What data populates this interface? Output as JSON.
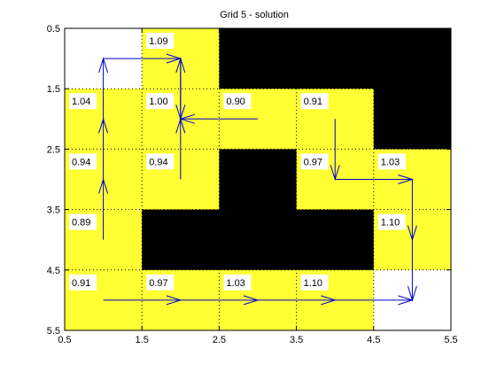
{
  "chart_data": {
    "type": "heatmap",
    "title": "Grid 5 - solution",
    "xlabel": "",
    "ylabel": "",
    "xlim": [
      0.5,
      5.5
    ],
    "ylim": [
      0.5,
      5.5
    ],
    "y_axis_reversed": true,
    "x_ticks": [
      "0.5",
      "1.5",
      "2.5",
      "3.5",
      "4.5",
      "5.5"
    ],
    "y_ticks": [
      "0.5",
      "1.5",
      "2.5",
      "3.5",
      "4.5",
      "5.5"
    ],
    "grid": "dotted",
    "colors": {
      "free": "#ffff33",
      "wall": "#000000",
      "terminal": "#ffffff",
      "arrow": "#0000cc",
      "label_bg": "#ffffff"
    },
    "cell_types": [
      [
        "terminal",
        "free",
        "wall",
        "wall",
        "wall"
      ],
      [
        "free",
        "free",
        "free",
        "free",
        "wall"
      ],
      [
        "free",
        "free",
        "wall",
        "free",
        "free"
      ],
      [
        "free",
        "wall",
        "wall",
        "wall",
        "free"
      ],
      [
        "free",
        "free",
        "free",
        "free",
        "terminal"
      ]
    ],
    "cell_values": [
      {
        "row": 1,
        "col": 2,
        "text": "1.09"
      },
      {
        "row": 2,
        "col": 1,
        "text": "1.04"
      },
      {
        "row": 2,
        "col": 2,
        "text": "1.00"
      },
      {
        "row": 2,
        "col": 3,
        "text": "0.90"
      },
      {
        "row": 2,
        "col": 4,
        "text": "0.91"
      },
      {
        "row": 3,
        "col": 1,
        "text": "0.94"
      },
      {
        "row": 3,
        "col": 2,
        "text": "0.94"
      },
      {
        "row": 3,
        "col": 4,
        "text": "0.97"
      },
      {
        "row": 3,
        "col": 5,
        "text": "1.03"
      },
      {
        "row": 4,
        "col": 1,
        "text": "0.89"
      },
      {
        "row": 4,
        "col": 5,
        "text": "1.10"
      },
      {
        "row": 5,
        "col": 1,
        "text": "0.91"
      },
      {
        "row": 5,
        "col": 2,
        "text": "0.97"
      },
      {
        "row": 5,
        "col": 3,
        "text": "1.03"
      },
      {
        "row": 5,
        "col": 4,
        "text": "1.10"
      }
    ],
    "arrows": [
      {
        "from": [
          1,
          4
        ],
        "to": [
          1,
          3
        ]
      },
      {
        "from": [
          1,
          3
        ],
        "to": [
          1,
          2
        ]
      },
      {
        "from": [
          1,
          2
        ],
        "to": [
          1,
          1
        ]
      },
      {
        "from": [
          1,
          1
        ],
        "to": [
          2,
          1
        ]
      },
      {
        "from": [
          2,
          1
        ],
        "to": [
          2,
          2
        ]
      },
      {
        "from": [
          2,
          3
        ],
        "to": [
          2,
          2
        ]
      },
      {
        "from": [
          3,
          2
        ],
        "to": [
          2,
          2
        ]
      },
      {
        "from": [
          2,
          2
        ],
        "to": [
          2,
          1
        ]
      },
      {
        "from": [
          4,
          2
        ],
        "to": [
          4,
          3
        ]
      },
      {
        "from": [
          4,
          3
        ],
        "to": [
          5,
          3
        ]
      },
      {
        "from": [
          5,
          3
        ],
        "to": [
          5,
          4
        ]
      },
      {
        "from": [
          5,
          4
        ],
        "to": [
          5,
          5
        ]
      },
      {
        "from": [
          1,
          5
        ],
        "to": [
          2,
          5
        ]
      },
      {
        "from": [
          2,
          5
        ],
        "to": [
          3,
          5
        ]
      },
      {
        "from": [
          3,
          5
        ],
        "to": [
          4,
          5
        ]
      },
      {
        "from": [
          4,
          5
        ],
        "to": [
          5,
          5
        ]
      }
    ]
  }
}
